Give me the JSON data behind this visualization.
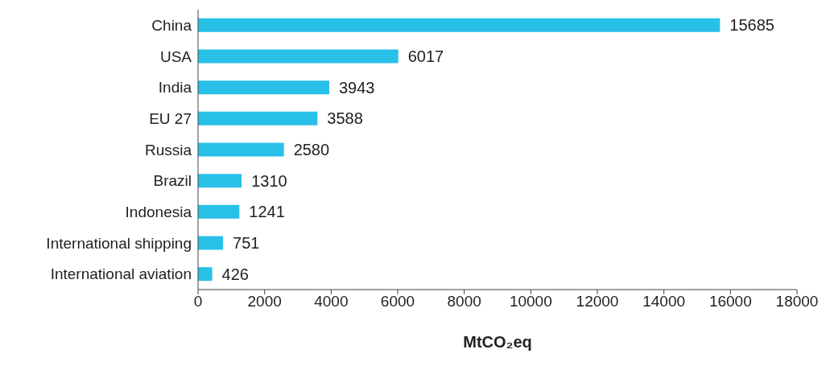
{
  "chart_data": {
    "type": "bar",
    "orientation": "horizontal",
    "categories": [
      "China",
      "USA",
      "India",
      "EU 27",
      "Russia",
      "Brazil",
      "Indonesia",
      "International shipping",
      "International aviation"
    ],
    "values": [
      15685,
      6017,
      3943,
      3588,
      2580,
      1310,
      1241,
      751,
      426
    ],
    "color": "#29c0e8",
    "data_labels": true,
    "xlabel": "MtCO₂eq",
    "xlim": [
      0,
      18000
    ],
    "xticks": [
      0,
      2000,
      4000,
      6000,
      8000,
      10000,
      12000,
      14000,
      16000,
      18000
    ]
  }
}
